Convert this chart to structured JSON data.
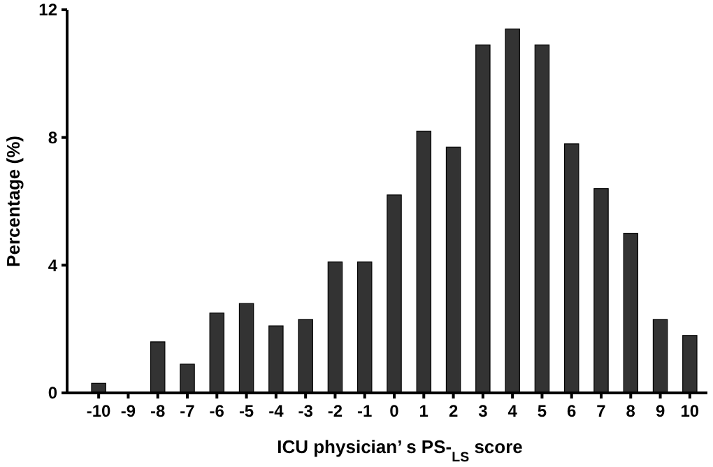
{
  "chart_data": {
    "type": "bar",
    "categories": [
      "-10",
      "-9",
      "-8",
      "-7",
      "-6",
      "-5",
      "-4",
      "-3",
      "-2",
      "-1",
      "0",
      "1",
      "2",
      "3",
      "4",
      "5",
      "6",
      "7",
      "8",
      "9",
      "10"
    ],
    "values": [
      0.3,
      0,
      1.6,
      0.9,
      2.5,
      2.8,
      2.1,
      2.3,
      4.1,
      4.1,
      6.2,
      8.2,
      7.7,
      10.9,
      11.4,
      10.9,
      7.8,
      6.4,
      5.0,
      2.3,
      1.8
    ],
    "color": "#333333",
    "xlabel": "ICU physician’ s PS-$_{LS}$ score",
    "ylabel": "Percentage (%)",
    "ylim": [
      0,
      12
    ],
    "yticks": [
      0,
      4,
      8,
      12
    ],
    "grid": false
  }
}
